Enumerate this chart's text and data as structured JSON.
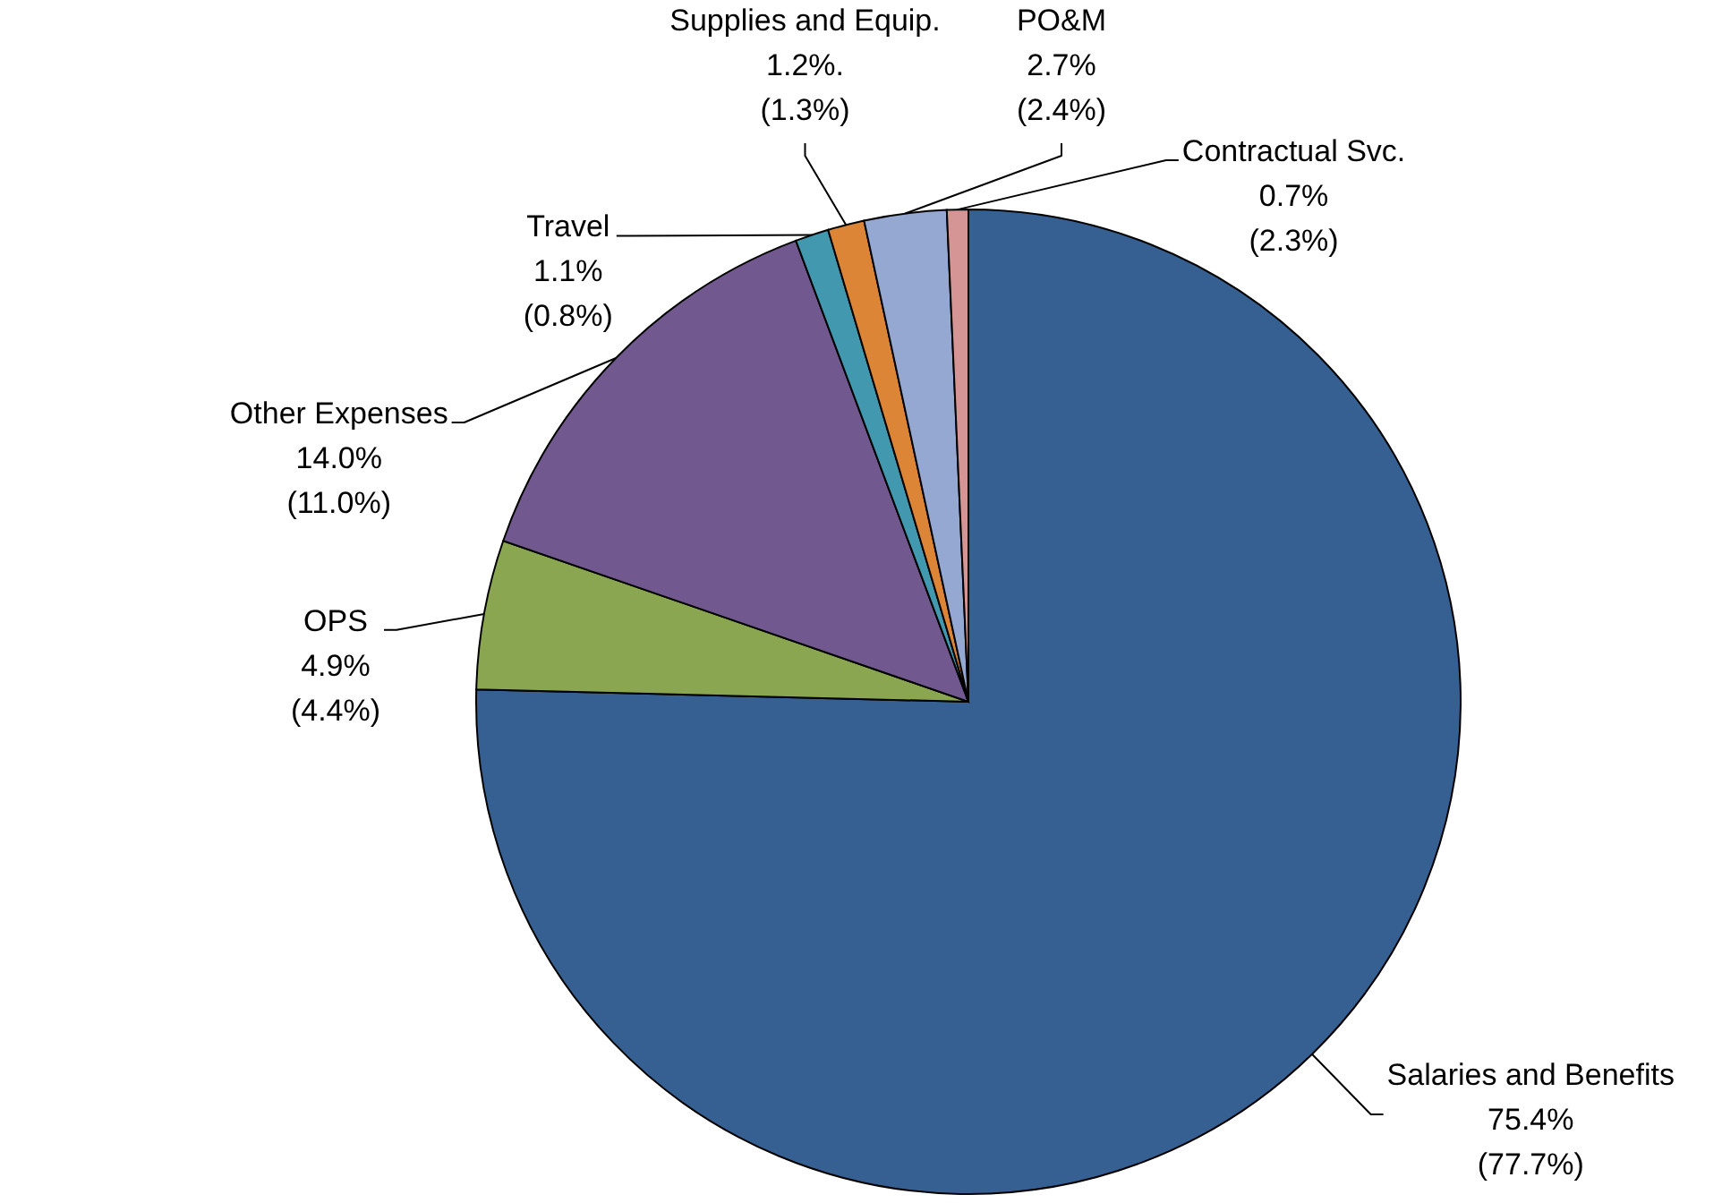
{
  "chart_data": {
    "type": "pie",
    "categories": [
      "Salaries and Benefits",
      "OPS",
      "Other Expenses",
      "Travel",
      "Supplies and Equip.",
      "PO&M",
      "Contractual Svc."
    ],
    "values": [
      75.4,
      4.9,
      14.0,
      1.1,
      1.2,
      2.7,
      0.7
    ],
    "colors": [
      "#376092",
      "#8ba650",
      "#71588f",
      "#4198af",
      "#dd8537",
      "#95a8d1",
      "#d69595"
    ],
    "value_labels": [
      "75.4%\n(77.7%)",
      "4.9%\n(4.4%)",
      "14.0%\n(11.0%)",
      "1.1%\n(0.8%)",
      "1.2%.\n(1.3%)",
      "2.7%\n(2.4%)",
      "0.7%\n(2.3%)"
    ]
  }
}
